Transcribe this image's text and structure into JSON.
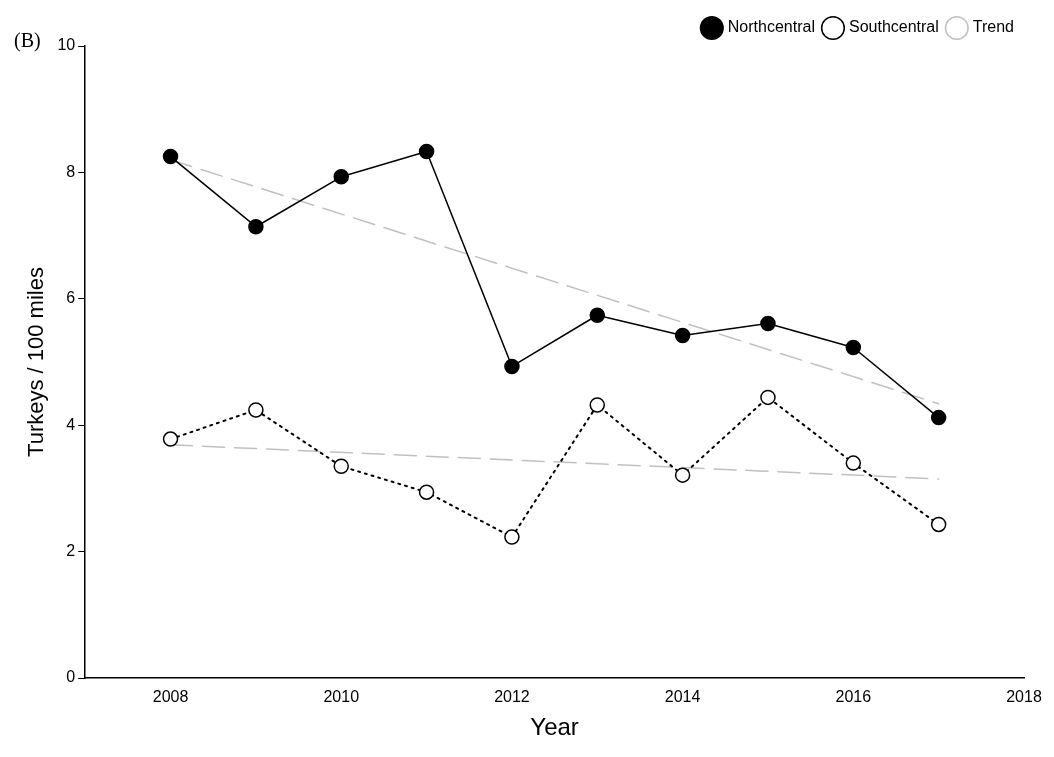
{
  "chart_data": {
    "type": "line",
    "xlabel": "Year",
    "ylabel": "Turkeys / 100 miles",
    "annotations": [
      "(B)"
    ],
    "xlim": [
      2007,
      2018
    ],
    "xticks": [
      2008,
      2010,
      2012,
      2014,
      2016,
      2018
    ],
    "ylim": [
      0,
      10
    ],
    "yticks": [
      0,
      2,
      4,
      6,
      8,
      10
    ],
    "grid": false,
    "legend": "top right",
    "series": [
      {
        "name": "Northcentral",
        "color": "#000000",
        "marker": "circle",
        "line_style": "solid",
        "x": [
          2008,
          2009,
          2010,
          2011,
          2012,
          2013,
          2014,
          2015,
          2016,
          2017
        ],
        "values": [
          8.25,
          7.14,
          7.93,
          8.33,
          4.93,
          5.74,
          5.42,
          5.61,
          5.23,
          4.12
        ]
      },
      {
        "name": "Southcentral",
        "color": "#000000",
        "marker": "circle",
        "line_style": "dotted",
        "x": [
          2008,
          2009,
          2010,
          2011,
          2012,
          2013,
          2014,
          2015,
          2016,
          2017
        ],
        "values": [
          3.78,
          4.24,
          3.35,
          2.94,
          2.23,
          4.32,
          3.21,
          4.44,
          3.4,
          2.43
        ]
      },
      {
        "name": "Trend",
        "color": "#c0c0c0",
        "marker": "none",
        "line_style": "dashed",
        "x": [
          2008,
          2017
        ],
        "values": [
          8.2,
          4.34
        ]
      },
      {
        "color": "#c0c0c0",
        "marker": "none",
        "line_style": "dashed",
        "x": [
          2008,
          2017
        ],
        "values": [
          3.69,
          3.15
        ]
      }
    ]
  }
}
